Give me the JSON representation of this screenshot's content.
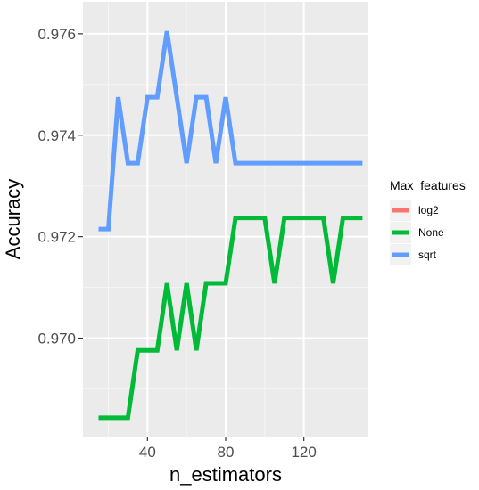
{
  "chart_data": {
    "type": "line",
    "title": "",
    "xlabel": "n_estimators",
    "ylabel": "Accuracy",
    "xlim": [
      7,
      153
    ],
    "ylim": [
      0.96806,
      0.97663
    ],
    "x_ticks": [
      40,
      80,
      120
    ],
    "y_ticks": [
      0.97,
      0.972,
      0.974,
      0.976
    ],
    "y_tick_labels": [
      "0.970",
      "0.972",
      "0.974",
      "0.976"
    ],
    "grid": true,
    "panel_background": "#ebebeb",
    "legend": {
      "title": "Max_features",
      "placement": "right",
      "entries": [
        "log2",
        "None",
        "sqrt"
      ]
    },
    "series": [
      {
        "name": "log2",
        "color": "#f8766d",
        "x": [],
        "y": []
      },
      {
        "name": "None",
        "color": "#00ba38",
        "x": [
          15,
          20,
          25,
          30,
          35,
          40,
          45,
          50,
          55,
          60,
          65,
          70,
          75,
          80,
          85,
          90,
          95,
          100,
          105,
          110,
          115,
          120,
          125,
          130,
          135,
          140,
          145,
          150
        ],
        "y": [
          0.96843,
          0.96843,
          0.96843,
          0.96843,
          0.96976,
          0.96976,
          0.96976,
          0.97108,
          0.96976,
          0.97108,
          0.96976,
          0.97108,
          0.97108,
          0.97108,
          0.97237,
          0.97237,
          0.97237,
          0.97237,
          0.97108,
          0.97237,
          0.97237,
          0.97237,
          0.97237,
          0.97237,
          0.97108,
          0.97237,
          0.97237,
          0.97237
        ]
      },
      {
        "name": "sqrt",
        "color": "#619cff",
        "x": [
          15,
          20,
          25,
          30,
          35,
          40,
          45,
          50,
          55,
          60,
          65,
          70,
          75,
          80,
          85,
          90,
          95,
          100,
          105,
          110,
          115,
          120,
          125,
          130,
          135,
          140,
          145,
          150
        ],
        "y": [
          0.97215,
          0.97215,
          0.97475,
          0.97345,
          0.97345,
          0.97475,
          0.97475,
          0.97605,
          0.97475,
          0.97345,
          0.97475,
          0.97475,
          0.97345,
          0.97475,
          0.97345,
          0.97345,
          0.97345,
          0.97345,
          0.97345,
          0.97345,
          0.97345,
          0.97345,
          0.97345,
          0.97345,
          0.97345,
          0.97345,
          0.97345,
          0.97345
        ]
      }
    ]
  }
}
